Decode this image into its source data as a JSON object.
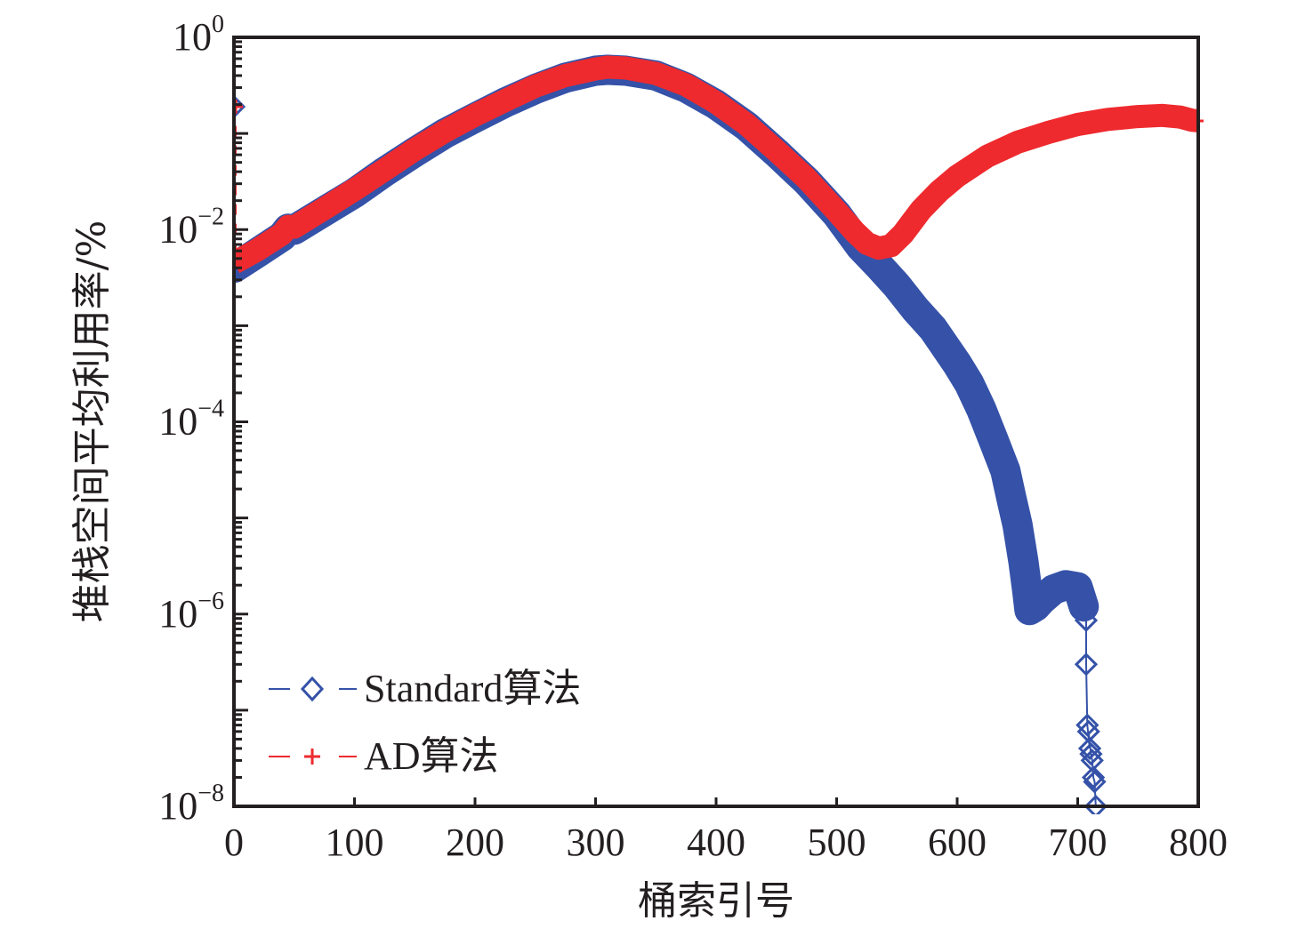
{
  "chart_data": {
    "type": "line",
    "title": "",
    "xlabel": "桶索引号",
    "ylabel": "堆栈空间平均利用率/%",
    "xlim": [
      0,
      800
    ],
    "ylim": [
      1e-08,
      1
    ],
    "yscale": "log",
    "grid": false,
    "legend_position": "bottom-left",
    "x_ticks": [
      0,
      100,
      200,
      300,
      400,
      500,
      600,
      700,
      800
    ],
    "x_tick_labels": [
      "0",
      "100",
      "200",
      "300",
      "400",
      "500",
      "600",
      "700",
      "800"
    ],
    "y_ticks": [
      1,
      0.01,
      0.0001,
      1e-06,
      1e-08
    ],
    "y_tick_labels": [
      {
        "base": "10",
        "exp": "0"
      },
      {
        "base": "10",
        "exp": "−2"
      },
      {
        "base": "10",
        "exp": "−4"
      },
      {
        "base": "10",
        "exp": "−6"
      },
      {
        "base": "10",
        "exp": "−8"
      }
    ],
    "series": [
      {
        "name": "Standard算法",
        "color": "#3552a8",
        "marker": "diamond",
        "line_style": "dashed",
        "points": [
          [
            0,
            0.19
          ],
          [
            0,
            0.004
          ],
          [
            20,
            0.0058
          ],
          [
            40,
            0.0085
          ],
          [
            45,
            0.0102
          ],
          [
            50,
            0.01
          ],
          [
            75,
            0.0155
          ],
          [
            100,
            0.024
          ],
          [
            125,
            0.04
          ],
          [
            150,
            0.064
          ],
          [
            175,
            0.1
          ],
          [
            200,
            0.146
          ],
          [
            225,
            0.21
          ],
          [
            250,
            0.29
          ],
          [
            275,
            0.38
          ],
          [
            300,
            0.45
          ],
          [
            310,
            0.46
          ],
          [
            325,
            0.45
          ],
          [
            350,
            0.4
          ],
          [
            375,
            0.3
          ],
          [
            400,
            0.2
          ],
          [
            425,
            0.12
          ],
          [
            450,
            0.063
          ],
          [
            475,
            0.032
          ],
          [
            500,
            0.0145
          ],
          [
            520,
            0.0066
          ],
          [
            535,
            0.0042
          ],
          [
            550,
            0.0026
          ],
          [
            565,
            0.0015
          ],
          [
            580,
            0.00093
          ],
          [
            600,
            0.0004
          ],
          [
            610,
            0.00025
          ],
          [
            620,
            0.000135
          ],
          [
            630,
            6.5e-05
          ],
          [
            640,
            3.1e-05
          ],
          [
            645,
            1.6e-05
          ],
          [
            650,
            8.5e-06
          ],
          [
            655,
            3.5e-06
          ],
          [
            658,
            1.8e-06
          ],
          [
            660,
            1.1e-06
          ],
          [
            665,
            1.2e-06
          ],
          [
            670,
            1.4e-06
          ],
          [
            680,
            1.8e-06
          ],
          [
            690,
            2e-06
          ],
          [
            700,
            1.9e-06
          ],
          [
            705,
            1.2e-06
          ],
          [
            707,
            8.6e-07
          ],
          [
            707,
            3e-07
          ],
          [
            708,
            7e-08
          ],
          [
            710,
            4e-08
          ],
          [
            709,
            6e-08
          ],
          [
            711,
            3.5e-08
          ],
          [
            712,
            3e-08
          ],
          [
            713,
            2e-08
          ],
          [
            714,
            1.8e-08
          ],
          [
            715,
            1e-08
          ]
        ]
      },
      {
        "name": "AD算法",
        "color": "#ee2a2e",
        "marker": "plus",
        "line_style": "dashed",
        "points": [
          [
            0,
            0.19
          ],
          [
            0,
            0.0045
          ],
          [
            20,
            0.0062
          ],
          [
            40,
            0.009
          ],
          [
            45,
            0.0108
          ],
          [
            50,
            0.0106
          ],
          [
            75,
            0.0165
          ],
          [
            100,
            0.026
          ],
          [
            125,
            0.042
          ],
          [
            150,
            0.068
          ],
          [
            175,
            0.105
          ],
          [
            200,
            0.155
          ],
          [
            225,
            0.22
          ],
          [
            250,
            0.31
          ],
          [
            275,
            0.4
          ],
          [
            300,
            0.47
          ],
          [
            310,
            0.49
          ],
          [
            325,
            0.48
          ],
          [
            350,
            0.42
          ],
          [
            375,
            0.32
          ],
          [
            400,
            0.21
          ],
          [
            425,
            0.125
          ],
          [
            450,
            0.066
          ],
          [
            475,
            0.034
          ],
          [
            500,
            0.0155
          ],
          [
            515,
            0.0095
          ],
          [
            525,
            0.0072
          ],
          [
            535,
            0.0064
          ],
          [
            545,
            0.0068
          ],
          [
            555,
            0.009
          ],
          [
            570,
            0.016
          ],
          [
            585,
            0.025
          ],
          [
            600,
            0.036
          ],
          [
            625,
            0.058
          ],
          [
            650,
            0.081
          ],
          [
            675,
            0.102
          ],
          [
            700,
            0.124
          ],
          [
            725,
            0.14
          ],
          [
            750,
            0.15
          ],
          [
            770,
            0.154
          ],
          [
            785,
            0.148
          ],
          [
            795,
            0.137
          ],
          [
            800,
            0.135
          ]
        ]
      }
    ]
  }
}
